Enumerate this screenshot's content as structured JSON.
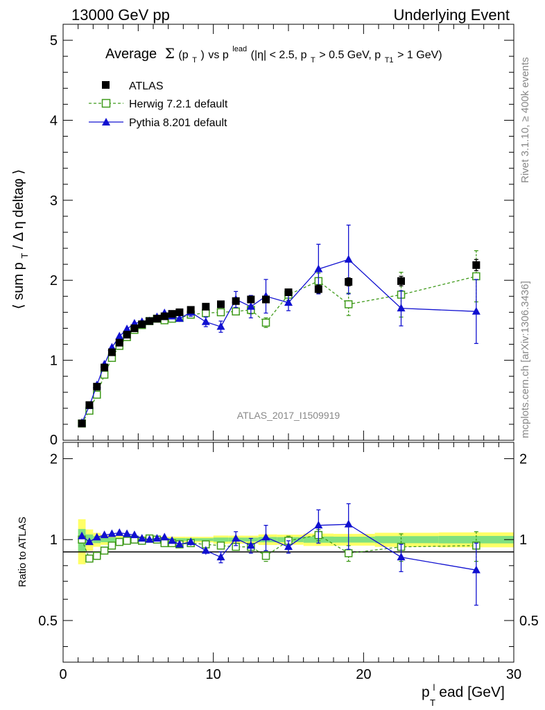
{
  "header": {
    "energy": "13000 GeV pp",
    "process": "Underlying Event"
  },
  "side": {
    "rivet": "Rivet 3.1.10, ≥ 400k events",
    "mcplots": "mcplots.cern.ch [arXiv:1306.3436]"
  },
  "analysis_id": "ATLAS_2017_I1509919",
  "chart_data": [
    {
      "type": "scatter",
      "panel": "main",
      "title": "Average Σ(p_T) vs p_T^lead (|η| < 2.5, p_T > 0.5 GeV, p_T1 > 1 GeV)",
      "title_parts": {
        "pre": "Average",
        "sigma": "Σ",
        "pt_arg": "(p",
        "T": "T",
        "close": ")",
        "vs": " vs p",
        "lead": "lead",
        "cut1": " (|η| < 2.5, p",
        "cut2": " > 0.5 GeV, p",
        "T1": "T1",
        "cut3": " > 1 GeV)"
      },
      "ylabel": "⟨ sum p_T / Δ η deltaφ ⟩",
      "ylabel_parts": {
        "a": "⟨ sum p",
        "T": "T",
        "b": " / Δ η deltaφ ⟩"
      },
      "xlim": [
        0,
        30
      ],
      "ylim": [
        0,
        5.2
      ],
      "yticks": [
        "1",
        "2",
        "3",
        "4",
        "5"
      ],
      "legend_position": "top-left",
      "legend": [
        "ATLAS",
        "Herwig 7.2.1 default",
        "Pythia 8.201 default"
      ],
      "x": [
        1.25,
        1.75,
        2.25,
        2.75,
        3.25,
        3.75,
        4.25,
        4.75,
        5.25,
        5.75,
        6.25,
        6.75,
        7.25,
        7.75,
        8.5,
        9.5,
        10.5,
        11.5,
        12.5,
        13.5,
        15.0,
        17.0,
        19.0,
        22.5,
        27.5
      ],
      "series": [
        {
          "name": "ATLAS",
          "color": "#000000",
          "marker": "square",
          "values": [
            0.21,
            0.44,
            0.67,
            0.91,
            1.1,
            1.22,
            1.32,
            1.4,
            1.45,
            1.49,
            1.52,
            1.55,
            1.58,
            1.6,
            1.63,
            1.67,
            1.7,
            1.74,
            1.76,
            1.76,
            1.85,
            1.89,
            1.98,
            1.99,
            2.19
          ],
          "err": [
            0.02,
            0.02,
            0.02,
            0.02,
            0.02,
            0.02,
            0.02,
            0.02,
            0.02,
            0.02,
            0.02,
            0.02,
            0.02,
            0.02,
            0.02,
            0.02,
            0.03,
            0.03,
            0.03,
            0.04,
            0.04,
            0.05,
            0.05,
            0.06,
            0.07
          ]
        },
        {
          "name": "Herwig 7.2.1 default",
          "color": "#3f9a1a",
          "marker": "open-square",
          "values": [
            0.21,
            0.37,
            0.57,
            0.82,
            1.03,
            1.18,
            1.29,
            1.38,
            1.44,
            1.49,
            1.52,
            1.5,
            1.52,
            1.53,
            1.57,
            1.59,
            1.6,
            1.61,
            1.63,
            1.47,
            1.82,
            1.99,
            1.7,
            1.82,
            2.05
          ],
          "err": [
            0.01,
            0.01,
            0.01,
            0.01,
            0.01,
            0.01,
            0.01,
            0.01,
            0.01,
            0.01,
            0.02,
            0.02,
            0.02,
            0.02,
            0.03,
            0.03,
            0.04,
            0.04,
            0.05,
            0.06,
            0.07,
            0.1,
            0.14,
            0.28,
            0.32
          ]
        },
        {
          "name": "Pythia 8.201 default",
          "color": "#1010d0",
          "marker": "triangle",
          "values": [
            0.22,
            0.43,
            0.69,
            0.95,
            1.16,
            1.3,
            1.39,
            1.46,
            1.48,
            1.49,
            1.54,
            1.59,
            1.55,
            1.52,
            1.6,
            1.48,
            1.42,
            1.76,
            1.67,
            1.8,
            1.72,
            2.14,
            2.26,
            1.65,
            1.61
          ],
          "err": [
            0.01,
            0.01,
            0.01,
            0.01,
            0.01,
            0.01,
            0.01,
            0.01,
            0.02,
            0.02,
            0.03,
            0.03,
            0.03,
            0.04,
            0.05,
            0.06,
            0.07,
            0.1,
            0.14,
            0.21,
            0.1,
            0.31,
            0.43,
            0.22,
            0.4
          ]
        }
      ]
    },
    {
      "type": "scatter",
      "panel": "ratio",
      "ylabel": "Ratio to ATLAS",
      "xlabel": "p_T^lead [GeV]",
      "xlabel_parts": {
        "p": "p",
        "T": "T",
        "l": "l",
        "rest": "ead [GeV]"
      },
      "xlim": [
        0,
        30
      ],
      "ylim": [
        0.35,
        2.3
      ],
      "xticks": [
        "0",
        "10",
        "20",
        "30"
      ],
      "yticks": [
        "0.5",
        "1",
        "2"
      ],
      "reference_band": {
        "inner_color": "#80e080",
        "outer_color": "#ffff66"
      },
      "series": [
        {
          "name": "Herwig 7.2.1 default",
          "color": "#3f9a1a",
          "marker": "open-square",
          "values": [
            1.0,
            0.85,
            0.87,
            0.91,
            0.95,
            0.98,
            0.99,
            1.0,
            0.99,
            1.01,
            1.0,
            0.97,
            0.97,
            0.96,
            0.97,
            0.96,
            0.95,
            0.94,
            0.94,
            0.87,
            0.99,
            1.04,
            0.89,
            0.94,
            0.95
          ],
          "err": [
            0.01,
            0.01,
            0.01,
            0.01,
            0.01,
            0.01,
            0.01,
            0.01,
            0.01,
            0.01,
            0.01,
            0.01,
            0.01,
            0.01,
            0.02,
            0.02,
            0.02,
            0.02,
            0.03,
            0.04,
            0.04,
            0.05,
            0.06,
            0.11,
            0.12
          ]
        },
        {
          "name": "Pythia 8.201 default",
          "color": "#1010d0",
          "marker": "triangle",
          "values": [
            1.03,
            0.98,
            1.02,
            1.04,
            1.05,
            1.06,
            1.05,
            1.04,
            1.01,
            1.0,
            1.01,
            1.02,
            0.99,
            0.96,
            0.98,
            0.91,
            0.86,
            1.01,
            0.95,
            1.02,
            0.94,
            1.13,
            1.14,
            0.86,
            0.77
          ],
          "err": [
            0.01,
            0.01,
            0.01,
            0.01,
            0.01,
            0.01,
            0.01,
            0.01,
            0.01,
            0.01,
            0.02,
            0.02,
            0.02,
            0.02,
            0.03,
            0.03,
            0.04,
            0.06,
            0.06,
            0.11,
            0.05,
            0.16,
            0.22,
            0.1,
            0.2
          ]
        }
      ]
    }
  ]
}
